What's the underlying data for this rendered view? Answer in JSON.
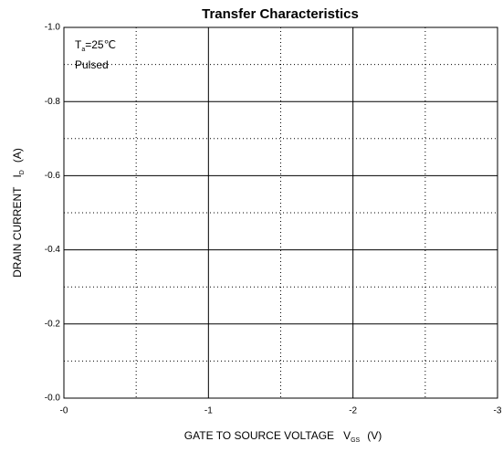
{
  "chart_data": {
    "type": "line",
    "title": "Transfer Characteristics",
    "xlabel": {
      "text": "GATE TO SOURCE VOLTAGE",
      "symbol": "V",
      "sub": "GS",
      "unit": "(V)"
    },
    "ylabel": {
      "text": "DRAIN CURRENT",
      "symbol": "I",
      "sub": "D",
      "unit": "(A)"
    },
    "annotations": [
      {
        "symbol": "T",
        "sub": "a",
        "text": "=25℃"
      },
      {
        "text": "Pulsed"
      }
    ],
    "series": [],
    "xlim": [
      0,
      -3
    ],
    "xticks": [
      {
        "value": 0,
        "label": "-0"
      },
      -1,
      -2,
      -3
    ],
    "xminor": [
      -0.5,
      -1.5,
      -2.5
    ],
    "ylim": [
      0,
      -1
    ],
    "yticks": [
      {
        "value": 0,
        "label": "-0.0"
      },
      -0.2,
      -0.4,
      -0.6,
      -0.8,
      {
        "value": -1,
        "label": "-1.0"
      }
    ],
    "yminor": [
      -0.1,
      -0.3,
      -0.5,
      -0.7,
      -0.9
    ],
    "grid": true
  }
}
